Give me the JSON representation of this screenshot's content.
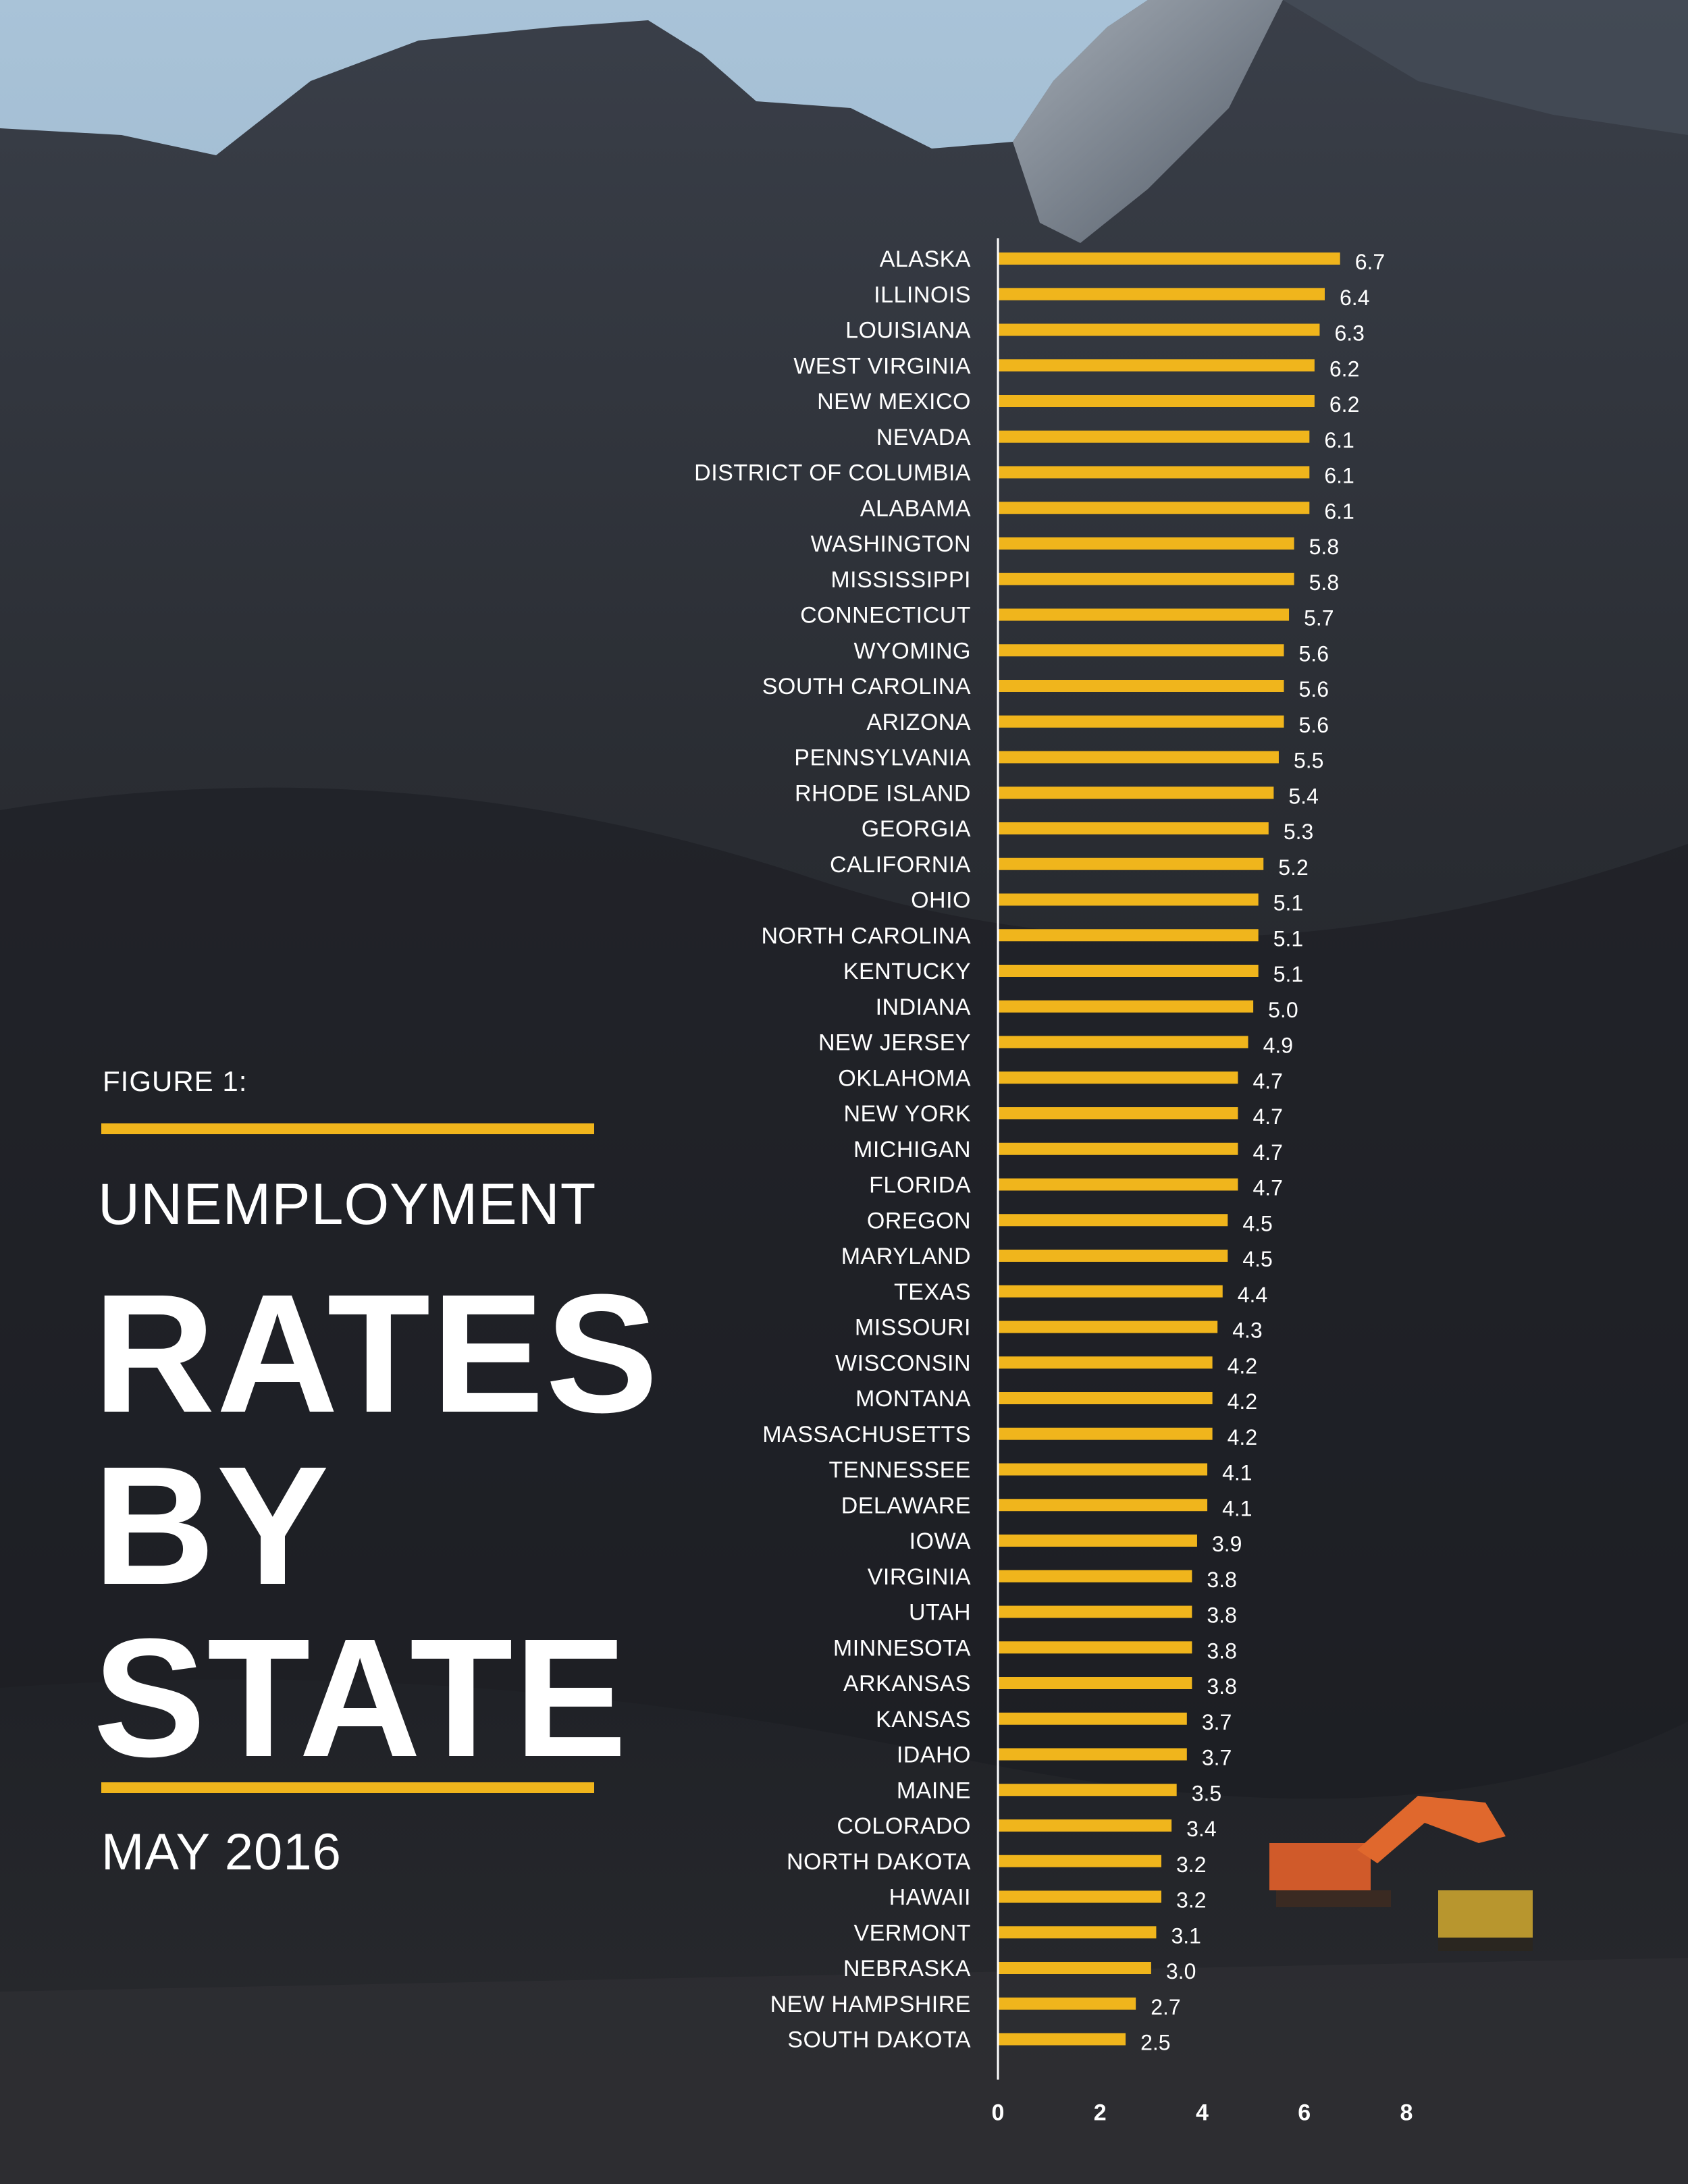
{
  "figure_label": "FIGURE 1:",
  "subtitle": "UNEMPLOYMENT",
  "title_lines": [
    "RATES",
    "BY",
    "STATE"
  ],
  "date": "MAY 2016",
  "colors": {
    "bar": "#f0b51c",
    "accent_rule": "#f0b51c",
    "text": "#ffffff"
  },
  "chart_data": {
    "type": "bar",
    "orientation": "horizontal",
    "title": "UNEMPLOYMENT RATES BY STATE",
    "subtitle": "MAY 2016",
    "xlim": [
      0,
      8
    ],
    "x_ticks": [
      "0",
      "2",
      "4",
      "6",
      "8"
    ],
    "grid": false,
    "categories": [
      "ALASKA",
      "ILLINOIS",
      "LOUISIANA",
      "WEST VIRGINIA",
      "NEW MEXICO",
      "NEVADA",
      "DISTRICT OF COLUMBIA",
      "ALABAMA",
      "WASHINGTON",
      "MISSISSIPPI",
      "CONNECTICUT",
      "WYOMING",
      "SOUTH CAROLINA",
      "ARIZONA",
      "PENNSYLVANIA",
      "RHODE ISLAND",
      "GEORGIA",
      "CALIFORNIA",
      "OHIO",
      "NORTH CAROLINA",
      "KENTUCKY",
      "INDIANA",
      "NEW JERSEY",
      "OKLAHOMA",
      "NEW YORK",
      "MICHIGAN",
      "FLORIDA",
      "OREGON",
      "MARYLAND",
      "TEXAS",
      "MISSOURI",
      "WISCONSIN",
      "MONTANA",
      "MASSACHUSETTS",
      "TENNESSEE",
      "DELAWARE",
      "IOWA",
      "VIRGINIA",
      "UTAH",
      "MINNESOTA",
      "ARKANSAS",
      "KANSAS",
      "IDAHO",
      "MAINE",
      "COLORADO",
      "NORTH DAKOTA",
      "HAWAII",
      "VERMONT",
      "NEBRASKA",
      "NEW HAMPSHIRE",
      "SOUTH DAKOTA"
    ],
    "values": [
      6.7,
      6.4,
      6.3,
      6.2,
      6.2,
      6.1,
      6.1,
      6.1,
      5.8,
      5.8,
      5.7,
      5.6,
      5.6,
      5.6,
      5.5,
      5.4,
      5.3,
      5.2,
      5.1,
      5.1,
      5.1,
      5.0,
      4.9,
      4.7,
      4.7,
      4.7,
      4.7,
      4.5,
      4.5,
      4.4,
      4.3,
      4.2,
      4.2,
      4.2,
      4.1,
      4.1,
      3.9,
      3.8,
      3.8,
      3.8,
      3.8,
      3.7,
      3.7,
      3.5,
      3.4,
      3.2,
      3.2,
      3.1,
      3.0,
      2.7,
      2.5
    ],
    "value_labels": [
      "6.7",
      "6.4",
      "6.3",
      "6.2",
      "6.2",
      "6.1",
      "6.1",
      "6.1",
      "5.8",
      "5.8",
      "5.7",
      "5.6",
      "5.6",
      "5.6",
      "5.5",
      "5.4",
      "5.3",
      "5.2",
      "5.1",
      "5.1",
      "5.1",
      "5.0",
      "4.9",
      "4.7",
      "4.7",
      "4.7",
      "4.7",
      "4.5",
      "4.5",
      "4.4",
      "4.3",
      "4.2",
      "4.2",
      "4.2",
      "4.1",
      "4.1",
      "3.9",
      "3.8",
      "3.8",
      "3.8",
      "3.8",
      "3.7",
      "3.7",
      "3.5",
      "3.4",
      "3.2",
      "3.2",
      "3.1",
      "3.0",
      "2.7",
      "2.5"
    ]
  }
}
